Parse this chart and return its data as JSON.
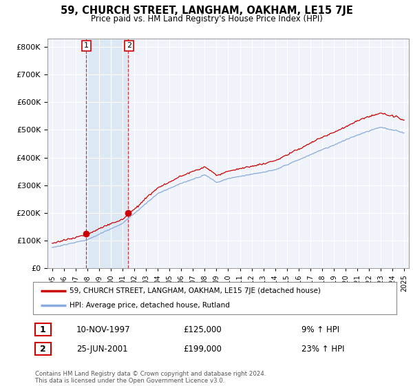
{
  "title": "59, CHURCH STREET, LANGHAM, OAKHAM, LE15 7JE",
  "subtitle": "Price paid vs. HM Land Registry's House Price Index (HPI)",
  "ylabel_ticks": [
    "£0",
    "£100K",
    "£200K",
    "£300K",
    "£400K",
    "£500K",
    "£600K",
    "£700K",
    "£800K"
  ],
  "ytick_values": [
    0,
    100000,
    200000,
    300000,
    400000,
    500000,
    600000,
    700000,
    800000
  ],
  "ylim": [
    0,
    830000
  ],
  "xlim_start": 1994.6,
  "xlim_end": 2025.4,
  "purchase1_date": 1997.86,
  "purchase1_price": 125000,
  "purchase1_label": "1",
  "purchase2_date": 2001.48,
  "purchase2_price": 199000,
  "purchase2_label": "2",
  "line_color_property": "#cc0000",
  "line_color_hpi": "#88aadd",
  "marker_color": "#cc0000",
  "grid_color": "#cccccc",
  "chart_bg_color": "#f0f4fa",
  "shade_color": "#dde8f5",
  "background_color": "#ffffff",
  "legend_entry1": "59, CHURCH STREET, LANGHAM, OAKHAM, LE15 7JE (detached house)",
  "legend_entry2": "HPI: Average price, detached house, Rutland",
  "table_row1": [
    "1",
    "10-NOV-1997",
    "£125,000",
    "9% ↑ HPI"
  ],
  "table_row2": [
    "2",
    "25-JUN-2001",
    "£199,000",
    "23% ↑ HPI"
  ],
  "footer": "Contains HM Land Registry data © Crown copyright and database right 2024.\nThis data is licensed under the Open Government Licence v3.0.",
  "xtick_years": [
    1995,
    1996,
    1997,
    1998,
    1999,
    2000,
    2001,
    2002,
    2003,
    2004,
    2005,
    2006,
    2007,
    2008,
    2009,
    2010,
    2011,
    2012,
    2013,
    2014,
    2015,
    2016,
    2017,
    2018,
    2019,
    2020,
    2021,
    2022,
    2023,
    2024,
    2025
  ]
}
